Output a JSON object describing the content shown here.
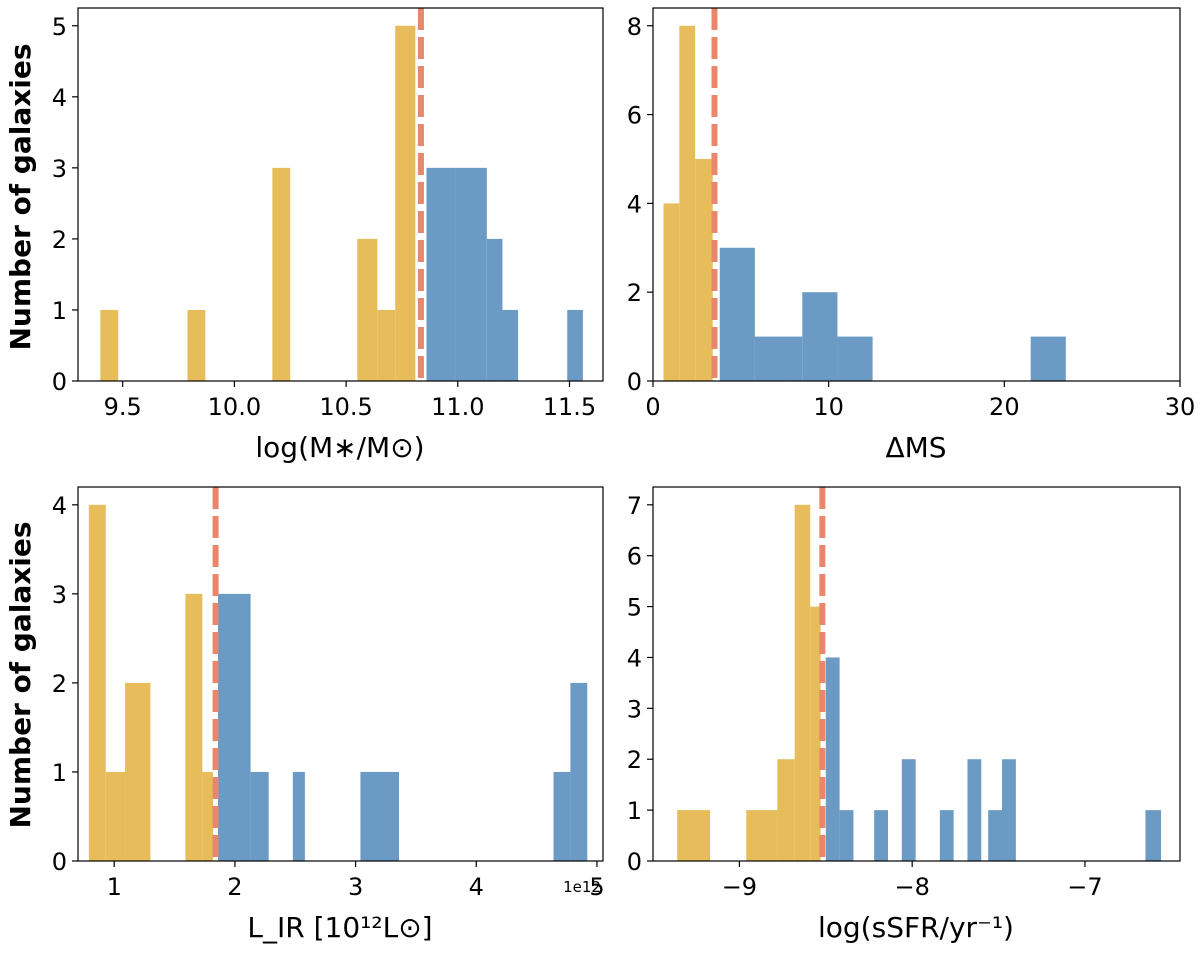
{
  "colors": {
    "below": "#e6bd5a",
    "above": "#6b9ac4",
    "median": "#e8876b"
  },
  "chart_data": [
    {
      "id": "mstar",
      "type": "bar",
      "xlabel": "log(M∗/M⊙)",
      "ylabel": "Number of galaxies",
      "xlim": [
        9.3,
        11.65
      ],
      "ylim": [
        0,
        5.25
      ],
      "xticks": [
        9.5,
        10.0,
        10.5,
        11.0,
        11.5
      ],
      "xtick_labels": [
        "9.5",
        "10.0",
        "10.5",
        "11.0",
        "11.5"
      ],
      "yticks": [
        0,
        1,
        2,
        3,
        4,
        5
      ],
      "ytick_labels": [
        "0",
        "1",
        "2",
        "3",
        "4",
        "5"
      ],
      "median_x": 10.835,
      "series": [
        {
          "name": "below",
          "bins": [
            [
              9.4,
              9.48,
              1
            ],
            [
              9.79,
              9.87,
              1
            ],
            [
              10.17,
              10.25,
              3
            ],
            [
              10.55,
              10.64,
              2
            ],
            [
              10.64,
              10.72,
              1
            ],
            [
              10.72,
              10.81,
              5
            ]
          ]
        },
        {
          "name": "above",
          "bins": [
            [
              10.86,
              10.99,
              3
            ],
            [
              10.99,
              11.13,
              3
            ],
            [
              11.13,
              11.2,
              2
            ],
            [
              11.2,
              11.27,
              1
            ],
            [
              11.49,
              11.56,
              1
            ]
          ]
        }
      ]
    },
    {
      "id": "dms",
      "type": "bar",
      "xlabel": "ΔMS",
      "ylabel": "",
      "xlim": [
        0,
        30
      ],
      "ylim": [
        0,
        8.4
      ],
      "xticks": [
        0,
        10,
        20,
        30
      ],
      "xtick_labels": [
        "0",
        "10",
        "20",
        "30"
      ],
      "yticks": [
        0,
        2,
        4,
        6,
        8
      ],
      "ytick_labels": [
        "0",
        "2",
        "4",
        "6",
        "8"
      ],
      "median_x": 3.5,
      "series": [
        {
          "name": "below",
          "bins": [
            [
              0.6,
              1.5,
              4
            ],
            [
              1.5,
              2.4,
              8
            ],
            [
              2.4,
              3.4,
              5
            ]
          ]
        },
        {
          "name": "above",
          "bins": [
            [
              3.8,
              5.8,
              3
            ],
            [
              5.8,
              7.8,
              1
            ],
            [
              7.8,
              8.5,
              1
            ],
            [
              8.5,
              10.5,
              2
            ],
            [
              10.5,
              12.5,
              1
            ],
            [
              21.5,
              23.5,
              1
            ]
          ]
        }
      ]
    },
    {
      "id": "lir",
      "type": "bar",
      "xlabel": "L_IR [10¹²L⊙]",
      "ylabel": "Number of galaxies",
      "offset_text": "1e12",
      "xlim": [
        0.7,
        5.05
      ],
      "ylim": [
        0,
        4.2
      ],
      "xticks": [
        1,
        2,
        3,
        4,
        5
      ],
      "xtick_labels": [
        "1",
        "2",
        "3",
        "4",
        "5"
      ],
      "yticks": [
        0,
        1,
        2,
        3,
        4
      ],
      "ytick_labels": [
        "0",
        "1",
        "2",
        "3",
        "4"
      ],
      "median_x": 1.84,
      "series": [
        {
          "name": "below",
          "bins": [
            [
              0.79,
              0.93,
              4
            ],
            [
              0.93,
              1.09,
              1
            ],
            [
              1.09,
              1.3,
              2
            ],
            [
              1.59,
              1.73,
              3
            ],
            [
              1.73,
              1.82,
              1
            ]
          ]
        },
        {
          "name": "above",
          "bins": [
            [
              1.86,
              2.13,
              3
            ],
            [
              2.13,
              2.28,
              1
            ],
            [
              2.48,
              2.58,
              1
            ],
            [
              3.04,
              3.36,
              1
            ],
            [
              4.64,
              4.78,
              1
            ],
            [
              4.78,
              4.92,
              2
            ]
          ]
        }
      ]
    },
    {
      "id": "ssfr",
      "type": "bar",
      "xlabel": "log(sSFR/yr⁻¹)",
      "ylabel": "",
      "xlim": [
        -9.5,
        -6.45
      ],
      "ylim": [
        0,
        7.35
      ],
      "xticks": [
        -9,
        -8,
        -7
      ],
      "xtick_labels": [
        "−9",
        "−8",
        "−7"
      ],
      "yticks": [
        0,
        1,
        2,
        3,
        4,
        5,
        6,
        7
      ],
      "ytick_labels": [
        "0",
        "1",
        "2",
        "3",
        "4",
        "5",
        "6",
        "7"
      ],
      "median_x": -8.52,
      "series": [
        {
          "name": "below",
          "bins": [
            [
              -9.36,
              -9.17,
              1
            ],
            [
              -8.96,
              -8.78,
              1
            ],
            [
              -8.78,
              -8.68,
              2
            ],
            [
              -8.68,
              -8.59,
              7
            ],
            [
              -8.59,
              -8.53,
              5
            ]
          ]
        },
        {
          "name": "above",
          "bins": [
            [
              -8.5,
              -8.42,
              4
            ],
            [
              -8.42,
              -8.34,
              1
            ],
            [
              -8.22,
              -8.14,
              1
            ],
            [
              -8.06,
              -7.98,
              2
            ],
            [
              -7.84,
              -7.76,
              1
            ],
            [
              -7.68,
              -7.6,
              2
            ],
            [
              -7.56,
              -7.48,
              1
            ],
            [
              -7.48,
              -7.4,
              2
            ],
            [
              -6.65,
              -6.56,
              1
            ]
          ]
        }
      ]
    }
  ]
}
